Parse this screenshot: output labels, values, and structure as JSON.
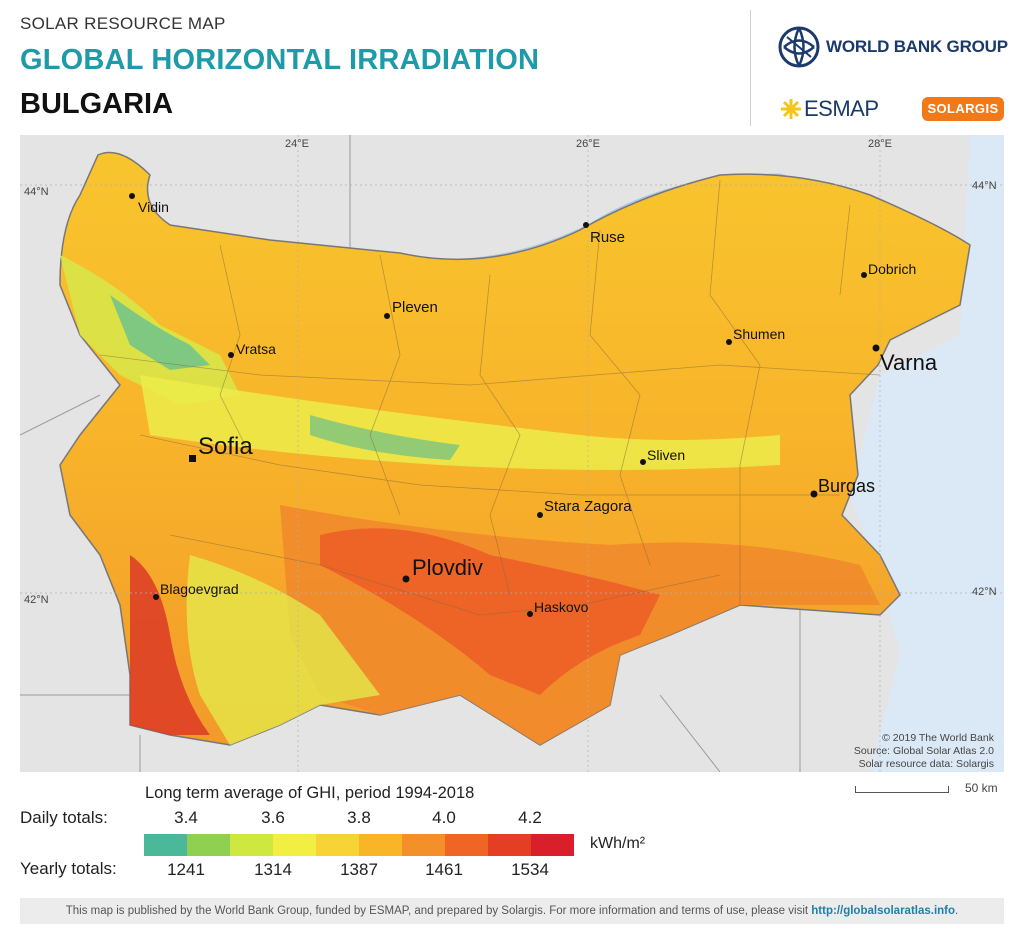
{
  "header": {
    "subtitle": "SOLAR RESOURCE MAP",
    "title": "GLOBAL HORIZONTAL IRRADIATION",
    "country": "BULGARIA"
  },
  "logos": {
    "world_bank": "WORLD BANK GROUP",
    "esmap": "ESMAP",
    "solargis": "SOLARGIS"
  },
  "map": {
    "coords": {
      "lon24": "24°E",
      "lon26": "26°E",
      "lon28": "28°E",
      "lat44": "44°N",
      "lat42": "42°N"
    },
    "cities": {
      "vidin": "Vidin",
      "ruse": "Ruse",
      "dobrich": "Dobrich",
      "pleven": "Pleven",
      "shumen": "Shumen",
      "vratsa": "Vratsa",
      "varna": "Varna",
      "sofia": "Sofia",
      "sliven": "Sliven",
      "burgas": "Burgas",
      "stara_zagora": "Stara Zagora",
      "plovdiv": "Plovdiv",
      "blagoevgrad": "Blagoevgrad",
      "haskovo": "Haskovo"
    },
    "credits": {
      "line1": "© 2019 The World Bank",
      "line2": "Source: Global Solar Atlas 2.0",
      "line3": "Solar resource data: Solargis"
    },
    "scale_label": "50 km"
  },
  "legend": {
    "title": "Long term average of GHI, period 1994-2018",
    "daily_label": "Daily totals:",
    "yearly_label": "Yearly totals:",
    "daily_ticks": [
      "3.4",
      "3.6",
      "3.8",
      "4.0",
      "4.2"
    ],
    "yearly_ticks": [
      "1241",
      "1314",
      "1387",
      "1461",
      "1534"
    ],
    "unit": "kWh/m²",
    "colors": [
      "#4cb89a",
      "#8fd052",
      "#cfe840",
      "#f2ee42",
      "#f8d335",
      "#f8b528",
      "#f4902a",
      "#ef6525",
      "#e43e24",
      "#d81f2a"
    ]
  },
  "footer": {
    "text": "This map is published by the World Bank Group, funded by ESMAP, and prepared by Solargis. For more information and terms of use, please visit ",
    "link": "http://globalsolaratlas.info",
    "end": "."
  }
}
